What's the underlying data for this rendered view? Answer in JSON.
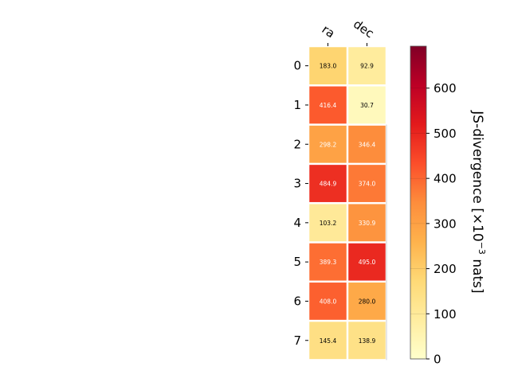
{
  "chart_data": {
    "type": "heatmap",
    "columns": [
      "ra",
      "dec"
    ],
    "rows": [
      "0",
      "1",
      "2",
      "3",
      "4",
      "5",
      "6",
      "7"
    ],
    "values": [
      [
        183.0,
        92.9
      ],
      [
        416.4,
        30.7
      ],
      [
        298.2,
        346.4
      ],
      [
        484.9,
        374.0
      ],
      [
        103.2,
        330.9
      ],
      [
        389.3,
        495.0
      ],
      [
        408.0,
        280.0
      ],
      [
        145.4,
        138.9
      ]
    ],
    "value_labels": [
      [
        "183.0",
        "92.9"
      ],
      [
        "416.4",
        "30.7"
      ],
      [
        "298.2",
        "346.4"
      ],
      [
        "484.9",
        "374.0"
      ],
      [
        "103.2",
        "330.9"
      ],
      [
        "389.3",
        "495.0"
      ],
      [
        "408.0",
        "280.0"
      ],
      [
        "145.4",
        "138.9"
      ]
    ],
    "colorbar": {
      "label_prefix": "JS-divergence [×10",
      "label_exponent": "−3",
      "label_suffix": " nats]",
      "vmin": 0,
      "vmax": 693,
      "ticks": [
        "0",
        "100",
        "200",
        "300",
        "400",
        "500",
        "600"
      ],
      "colormap": "YlOrRd"
    },
    "colors": {
      "cmap_stops": [
        "#ffffcc",
        "#ffeda0",
        "#fed976",
        "#feb24c",
        "#fd8d3c",
        "#fc4e2a",
        "#e31a1c",
        "#bd0026",
        "#800026"
      ]
    }
  }
}
